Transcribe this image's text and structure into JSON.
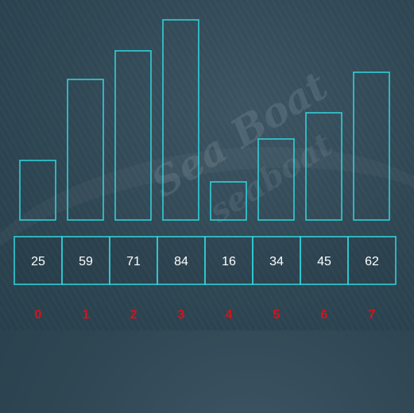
{
  "chart_data": {
    "type": "bar",
    "categories": [
      "0",
      "1",
      "2",
      "3",
      "4",
      "5",
      "6",
      "7"
    ],
    "values": [
      25,
      59,
      71,
      84,
      16,
      34,
      45,
      62
    ],
    "ylim": [
      0,
      84
    ],
    "title": "",
    "xlabel": "",
    "ylabel": "",
    "grid": false,
    "legend": "none"
  },
  "watermark": {
    "line1": "Sea Boat",
    "line2": "seaboat"
  },
  "colors": {
    "bar_stroke": "#2fd8e0",
    "cell_stroke": "#2fd8e0",
    "value_text": "#ffffff",
    "index_text": "#d8121b"
  }
}
